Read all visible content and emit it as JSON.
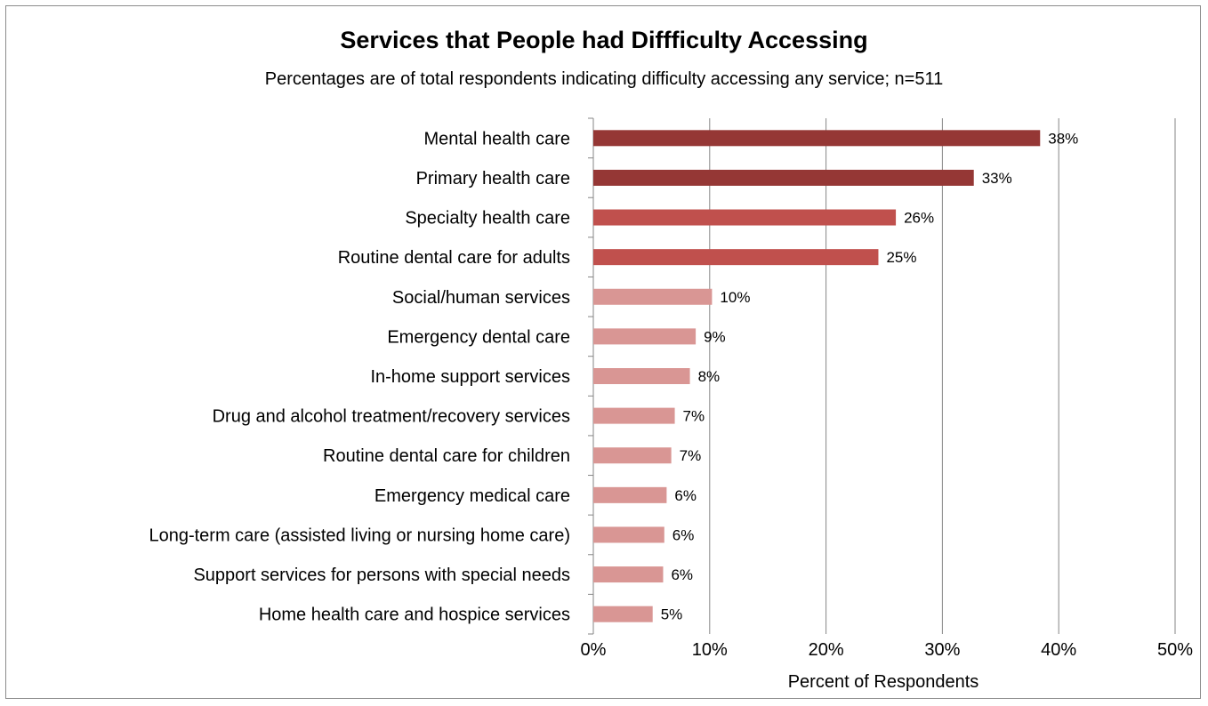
{
  "chart_data": {
    "type": "bar",
    "orientation": "horizontal",
    "title": "Services that People had Diffficulty Accessing",
    "subtitle": "Percentages are of total respondents  indicating difficulty accessing any service; n=511",
    "xlabel": "Percent of Respondents",
    "ylabel": "",
    "xlim": [
      0,
      50
    ],
    "ticks": [
      "0%",
      "10%",
      "20%",
      "30%",
      "40%",
      "50%"
    ],
    "grid": true,
    "categories": [
      "Mental health care",
      "Primary health care",
      "Specialty health care",
      "Routine dental care for adults",
      "Social/human services",
      "Emergency dental care",
      "In-home support services",
      "Drug and alcohol treatment/recovery services",
      "Routine dental care for children",
      "Emergency medical care",
      "Long-term care (assisted living or nursing home care)",
      "Support services for persons with special needs",
      "Home health care and hospice services"
    ],
    "values": [
      38.4,
      32.7,
      26.0,
      24.5,
      10.2,
      8.8,
      8.3,
      7.0,
      6.7,
      6.3,
      6.1,
      6.0,
      5.1
    ],
    "labels": [
      "38%",
      "33%",
      "26%",
      "25%",
      "10%",
      "9%",
      "8%",
      "7%",
      "7%",
      "6%",
      "6%",
      "6%",
      "5%"
    ],
    "colors": [
      "#953735",
      "#953735",
      "#c0504d",
      "#c0504d",
      "#d99694",
      "#d99694",
      "#d99694",
      "#d99694",
      "#d99694",
      "#d99694",
      "#d99694",
      "#d99694",
      "#d99694"
    ],
    "gridline_color": "#868686"
  }
}
